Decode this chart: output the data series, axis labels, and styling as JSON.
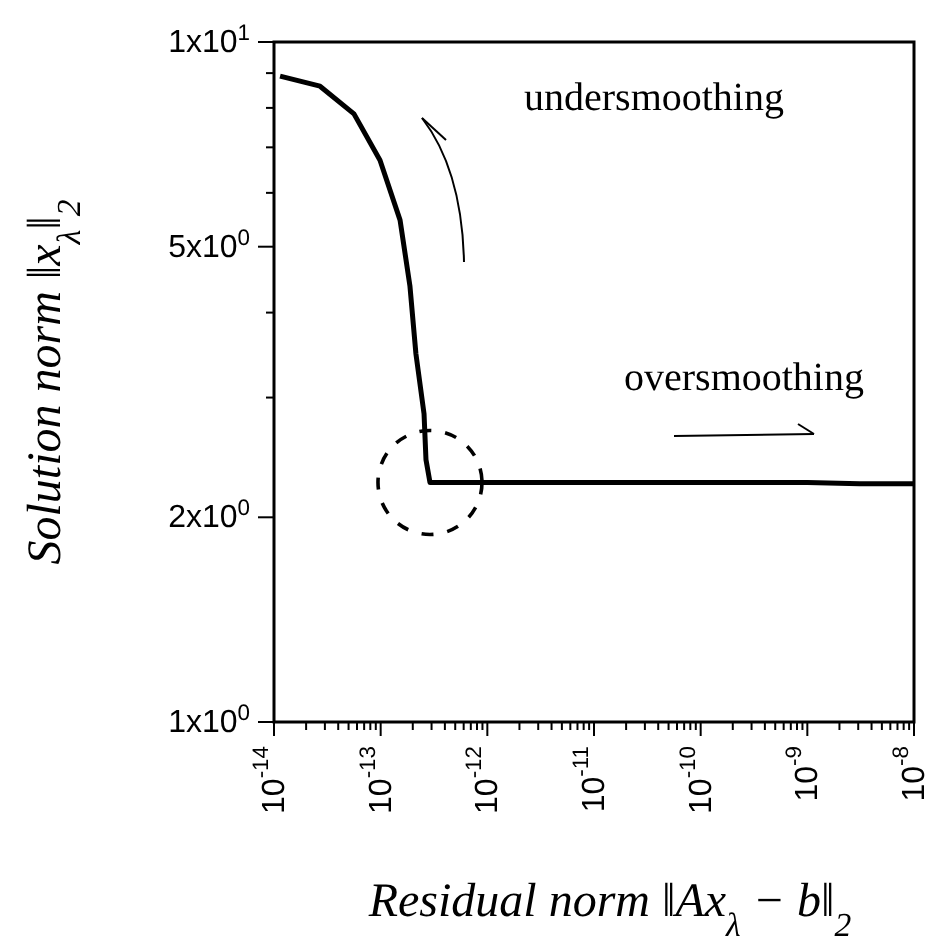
{
  "chart_data": {
    "type": "line",
    "xlabel": "Residual norm   ‖Ax$_{λ}$ − b‖$_{2}$",
    "ylabel": "Solution norm   ‖x$_{λ}$‖$_{2}$",
    "log": "xy",
    "grid": false,
    "marker": "none",
    "line_style": "solid",
    "xlim": [
      1e-14,
      1e-08
    ],
    "ylim": [
      1,
      10
    ],
    "xticks": [
      {
        "value": 1e-14,
        "label": "10$^{-14}$"
      },
      {
        "value": 1e-13,
        "label": "10$^{-13}$"
      },
      {
        "value": 1e-12,
        "label": "10$^{-12}$"
      },
      {
        "value": 1e-11,
        "label": "10$^{-11}$"
      },
      {
        "value": 1e-10,
        "label": "10$^{-10}$"
      },
      {
        "value": 1e-09,
        "label": "10$^{-9}$"
      },
      {
        "value": 1e-08,
        "label": "10$^{-8}$"
      },
      {
        "value": 2e-14,
        "label": null
      },
      {
        "value": 3e-14,
        "label": null
      },
      {
        "value": 4e-14,
        "label": null
      },
      {
        "value": 5e-14,
        "label": null
      },
      {
        "value": 6e-14,
        "label": null
      },
      {
        "value": 7e-14,
        "label": null
      },
      {
        "value": 8e-14,
        "label": null
      },
      {
        "value": 9e-14,
        "label": null
      },
      {
        "value": 2e-13,
        "label": null
      },
      {
        "value": 3e-13,
        "label": null
      },
      {
        "value": 4e-13,
        "label": null
      },
      {
        "value": 5e-13,
        "label": null
      },
      {
        "value": 6e-13,
        "label": null
      },
      {
        "value": 7e-13,
        "label": null
      },
      {
        "value": 8e-13,
        "label": null
      },
      {
        "value": 9e-13,
        "label": null
      },
      {
        "value": 2e-12,
        "label": null
      },
      {
        "value": 3e-12,
        "label": null
      },
      {
        "value": 4e-12,
        "label": null
      },
      {
        "value": 5e-12,
        "label": null
      },
      {
        "value": 6e-12,
        "label": null
      },
      {
        "value": 7e-12,
        "label": null
      },
      {
        "value": 8e-12,
        "label": null
      },
      {
        "value": 9e-12,
        "label": null
      },
      {
        "value": 2e-11,
        "label": null
      },
      {
        "value": 3e-11,
        "label": null
      },
      {
        "value": 4e-11,
        "label": null
      },
      {
        "value": 5e-11,
        "label": null
      },
      {
        "value": 6e-11,
        "label": null
      },
      {
        "value": 7e-11,
        "label": null
      },
      {
        "value": 8e-11,
        "label": null
      },
      {
        "value": 9e-11,
        "label": null
      },
      {
        "value": 2e-10,
        "label": null
      },
      {
        "value": 3e-10,
        "label": null
      },
      {
        "value": 4e-10,
        "label": null
      },
      {
        "value": 5e-10,
        "label": null
      },
      {
        "value": 6e-10,
        "label": null
      },
      {
        "value": 7e-10,
        "label": null
      },
      {
        "value": 8e-10,
        "label": null
      },
      {
        "value": 9e-10,
        "label": null
      },
      {
        "value": 2e-09,
        "label": null
      },
      {
        "value": 3e-09,
        "label": null
      },
      {
        "value": 4e-09,
        "label": null
      },
      {
        "value": 5e-09,
        "label": null
      },
      {
        "value": 6e-09,
        "label": null
      },
      {
        "value": 7e-09,
        "label": null
      },
      {
        "value": 8e-09,
        "label": null
      },
      {
        "value": 9e-09,
        "label": null
      }
    ],
    "yticks": [
      {
        "value": 1,
        "label": "1x10$^{0}$"
      },
      {
        "value": 2,
        "label": "2x10$^{0}$"
      },
      {
        "value": 5,
        "label": "5x10$^{0}$"
      },
      {
        "value": 10,
        "label": "1x10$^{1}$"
      },
      {
        "value": 3,
        "label": null
      },
      {
        "value": 4,
        "label": null
      },
      {
        "value": 6,
        "label": null
      },
      {
        "value": 7,
        "label": null
      },
      {
        "value": 8,
        "label": null
      },
      {
        "value": 9,
        "label": null
      }
    ],
    "series": [
      {
        "color": "#000000",
        "x": [
          1.14e-14,
          2.7e-14,
          5.62e-14,
          9.86e-14,
          1.52e-13,
          1.88e-13,
          2.14e-13,
          2.55e-13,
          2.66e-13,
          2.9e-13,
          1.15e-11,
          1e-09,
          3.09e-09,
          1e-08
        ],
        "values": [
          8.91,
          8.61,
          7.84,
          6.7,
          5.47,
          4.38,
          3.48,
          2.84,
          2.43,
          2.25,
          2.25,
          2.25,
          2.24,
          2.24
        ]
      }
    ],
    "annotations": [
      "undersmoothing",
      "oversmoothing"
    ]
  }
}
